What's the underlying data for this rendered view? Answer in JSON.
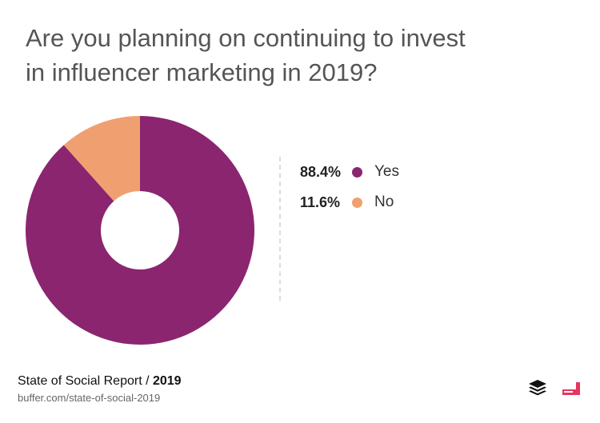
{
  "title_lines": [
    "Are you planning on continuing to invest",
    "in influencer marketing in 2019?"
  ],
  "chart_data": {
    "type": "pie",
    "donut": true,
    "categories": [
      "Yes",
      "No"
    ],
    "values": [
      88.4,
      11.6
    ],
    "value_labels": [
      "88.4%",
      "11.6%"
    ],
    "colors": [
      "#8b2570",
      "#f0a070"
    ],
    "legend_position": "right"
  },
  "footer": {
    "report": "State of Social Report / ",
    "year": "2019",
    "url": "buffer.com/state-of-social-2019"
  },
  "icons": {
    "buffer": "buffer-logo-icon",
    "brand": "brand-logo-icon"
  }
}
